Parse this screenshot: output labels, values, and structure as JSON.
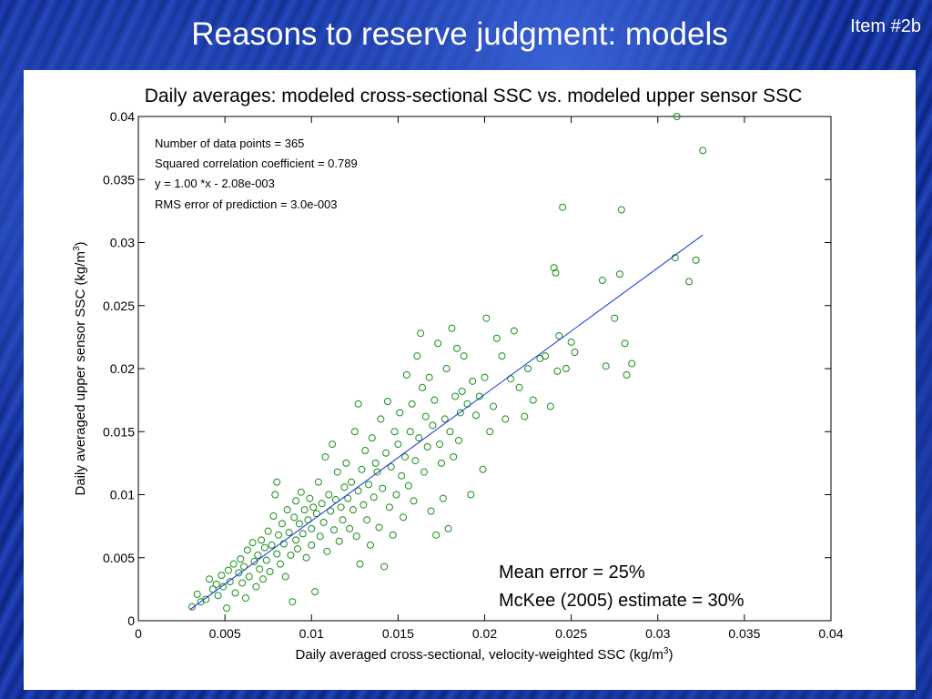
{
  "slide": {
    "title": "Reasons to reserve judgment: models",
    "item_label": "Item #2b"
  },
  "colors": {
    "points": "#1a8c1a",
    "fit_line": "#1030e0",
    "background": "#102c90"
  },
  "chart_data": {
    "type": "scatter",
    "title": "Daily averages: modeled cross-sectional SSC vs. modeled upper sensor SSC",
    "xlabel": "Daily averaged cross-sectional, velocity-weighted SSC (kg/m",
    "xlabel_sup": "3",
    "xlabel_end": ")",
    "ylabel": "Daily averaged upper sensor SSC (kg/m",
    "ylabel_sup": "3",
    "ylabel_end": ")",
    "xlim": [
      0,
      0.04
    ],
    "ylim": [
      0,
      0.04
    ],
    "xticks": [
      "0",
      "0.005",
      "0.01",
      "0.015",
      "0.02",
      "0.025",
      "0.03",
      "0.035",
      "0.04"
    ],
    "yticks": [
      "0",
      "0.005",
      "0.01",
      "0.015",
      "0.02",
      "0.025",
      "0.03",
      "0.035",
      "0.04"
    ],
    "grid": false,
    "stats": [
      "Number of data points = 365",
      "Squared correlation coefficient = 0.789",
      "y = 1.00 *x - 2.08e-003",
      "RMS error of prediction = 3.0e-003"
    ],
    "notes": [
      "Mean error = 25%",
      "McKee (2005) estimate = 30%"
    ],
    "fit_line": {
      "x": [
        0.003,
        0.0326
      ],
      "y": [
        0.0009,
        0.0306
      ]
    },
    "series": [
      {
        "marker": "open-circle",
        "points": [
          [
            0.0031,
            0.0011
          ],
          [
            0.0034,
            0.0021
          ],
          [
            0.0036,
            0.0015
          ],
          [
            0.0039,
            0.0017
          ],
          [
            0.0041,
            0.0033
          ],
          [
            0.0043,
            0.0025
          ],
          [
            0.0045,
            0.0029
          ],
          [
            0.0046,
            0.002
          ],
          [
            0.0048,
            0.0036
          ],
          [
            0.0049,
            0.0027
          ],
          [
            0.0051,
            0.001
          ],
          [
            0.0052,
            0.004
          ],
          [
            0.0053,
            0.0031
          ],
          [
            0.0055,
            0.0045
          ],
          [
            0.0056,
            0.0022
          ],
          [
            0.0058,
            0.0038
          ],
          [
            0.0059,
            0.0049
          ],
          [
            0.006,
            0.003
          ],
          [
            0.0061,
            0.0043
          ],
          [
            0.0062,
            0.0018
          ],
          [
            0.0063,
            0.0056
          ],
          [
            0.0064,
            0.0035
          ],
          [
            0.0066,
            0.0062
          ],
          [
            0.0067,
            0.0047
          ],
          [
            0.0068,
            0.0027
          ],
          [
            0.0069,
            0.0052
          ],
          [
            0.007,
            0.0041
          ],
          [
            0.0071,
            0.0064
          ],
          [
            0.0072,
            0.0033
          ],
          [
            0.0073,
            0.0058
          ],
          [
            0.0074,
            0.0048
          ],
          [
            0.0075,
            0.0071
          ],
          [
            0.0076,
            0.0039
          ],
          [
            0.0077,
            0.006
          ],
          [
            0.0078,
            0.0083
          ],
          [
            0.0079,
            0.01
          ],
          [
            0.008,
            0.011
          ],
          [
            0.008,
            0.0053
          ],
          [
            0.0081,
            0.0068
          ],
          [
            0.0082,
            0.0045
          ],
          [
            0.0083,
            0.0077
          ],
          [
            0.0084,
            0.0061
          ],
          [
            0.0085,
            0.0035
          ],
          [
            0.0086,
            0.0088
          ],
          [
            0.0087,
            0.007
          ],
          [
            0.0088,
            0.0052
          ],
          [
            0.0089,
            0.0015
          ],
          [
            0.009,
            0.0082
          ],
          [
            0.0091,
            0.0064
          ],
          [
            0.0091,
            0.0095
          ],
          [
            0.0092,
            0.0057
          ],
          [
            0.0093,
            0.0077
          ],
          [
            0.0094,
            0.0102
          ],
          [
            0.0095,
            0.0069
          ],
          [
            0.0096,
            0.0088
          ],
          [
            0.0097,
            0.005
          ],
          [
            0.0098,
            0.008
          ],
          [
            0.0099,
            0.0097
          ],
          [
            0.01,
            0.0073
          ],
          [
            0.01,
            0.006
          ],
          [
            0.0101,
            0.009
          ],
          [
            0.0102,
            0.0023
          ],
          [
            0.0103,
            0.0085
          ],
          [
            0.0104,
            0.011
          ],
          [
            0.0105,
            0.0067
          ],
          [
            0.0106,
            0.0093
          ],
          [
            0.0107,
            0.0078
          ],
          [
            0.0108,
            0.013
          ],
          [
            0.0109,
            0.0055
          ],
          [
            0.011,
            0.01
          ],
          [
            0.0111,
            0.0087
          ],
          [
            0.0112,
            0.014
          ],
          [
            0.0113,
            0.0072
          ],
          [
            0.0114,
            0.0096
          ],
          [
            0.0115,
            0.0118
          ],
          [
            0.0116,
            0.0063
          ],
          [
            0.0117,
            0.009
          ],
          [
            0.0118,
            0.008
          ],
          [
            0.0119,
            0.0106
          ],
          [
            0.012,
            0.0125
          ],
          [
            0.0121,
            0.0097
          ],
          [
            0.0122,
            0.0073
          ],
          [
            0.0123,
            0.011
          ],
          [
            0.0124,
            0.0088
          ],
          [
            0.0125,
            0.015
          ],
          [
            0.0126,
            0.0067
          ],
          [
            0.0127,
            0.0172
          ],
          [
            0.0127,
            0.0103
          ],
          [
            0.0128,
            0.0045
          ],
          [
            0.0129,
            0.012
          ],
          [
            0.013,
            0.0092
          ],
          [
            0.0131,
            0.0135
          ],
          [
            0.0132,
            0.008
          ],
          [
            0.0133,
            0.0108
          ],
          [
            0.0134,
            0.006
          ],
          [
            0.0135,
            0.0145
          ],
          [
            0.0136,
            0.0098
          ],
          [
            0.0137,
            0.0125
          ],
          [
            0.0138,
            0.0118
          ],
          [
            0.0139,
            0.0074
          ],
          [
            0.014,
            0.016
          ],
          [
            0.0141,
            0.0105
          ],
          [
            0.0142,
            0.0043
          ],
          [
            0.0143,
            0.0133
          ],
          [
            0.0144,
            0.0174
          ],
          [
            0.0145,
            0.009
          ],
          [
            0.0146,
            0.0122
          ],
          [
            0.0147,
            0.0068
          ],
          [
            0.0148,
            0.015
          ],
          [
            0.0149,
            0.01
          ],
          [
            0.015,
            0.014
          ],
          [
            0.0151,
            0.0165
          ],
          [
            0.0152,
            0.0115
          ],
          [
            0.0153,
            0.0082
          ],
          [
            0.0154,
            0.013
          ],
          [
            0.0155,
            0.0195
          ],
          [
            0.0156,
            0.0107
          ],
          [
            0.0157,
            0.015
          ],
          [
            0.0158,
            0.0172
          ],
          [
            0.0159,
            0.0095
          ],
          [
            0.016,
            0.0127
          ],
          [
            0.0161,
            0.021
          ],
          [
            0.0162,
            0.0145
          ],
          [
            0.0163,
            0.0228
          ],
          [
            0.0164,
            0.0185
          ],
          [
            0.0165,
            0.0118
          ],
          [
            0.0166,
            0.0162
          ],
          [
            0.0167,
            0.0138
          ],
          [
            0.0168,
            0.0193
          ],
          [
            0.0169,
            0.0087
          ],
          [
            0.017,
            0.0155
          ],
          [
            0.0171,
            0.0175
          ],
          [
            0.0172,
            0.0068
          ],
          [
            0.0173,
            0.022
          ],
          [
            0.0174,
            0.014
          ],
          [
            0.0175,
            0.0125
          ],
          [
            0.0176,
            0.0097
          ],
          [
            0.0177,
            0.016
          ],
          [
            0.0178,
            0.02
          ],
          [
            0.0179,
            0.0073
          ],
          [
            0.018,
            0.015
          ],
          [
            0.0181,
            0.0232
          ],
          [
            0.0182,
            0.013
          ],
          [
            0.0183,
            0.0178
          ],
          [
            0.0184,
            0.0216
          ],
          [
            0.0185,
            0.0143
          ],
          [
            0.0186,
            0.0165
          ],
          [
            0.0187,
            0.0182
          ],
          [
            0.0188,
            0.021
          ],
          [
            0.019,
            0.0172
          ],
          [
            0.0192,
            0.01
          ],
          [
            0.0193,
            0.019
          ],
          [
            0.0195,
            0.0163
          ],
          [
            0.0197,
            0.0178
          ],
          [
            0.0199,
            0.012
          ],
          [
            0.02,
            0.0193
          ],
          [
            0.0201,
            0.024
          ],
          [
            0.0203,
            0.015
          ],
          [
            0.0205,
            0.017
          ],
          [
            0.0207,
            0.0224
          ],
          [
            0.021,
            0.021
          ],
          [
            0.0212,
            0.016
          ],
          [
            0.0215,
            0.0192
          ],
          [
            0.0217,
            0.023
          ],
          [
            0.022,
            0.0185
          ],
          [
            0.0223,
            0.0162
          ],
          [
            0.0225,
            0.02
          ],
          [
            0.0228,
            0.0175
          ],
          [
            0.0232,
            0.0208
          ],
          [
            0.0235,
            0.021
          ],
          [
            0.0238,
            0.017
          ],
          [
            0.024,
            0.028
          ],
          [
            0.0241,
            0.0276
          ],
          [
            0.0242,
            0.0198
          ],
          [
            0.0243,
            0.0226
          ],
          [
            0.0245,
            0.0328
          ],
          [
            0.0247,
            0.02
          ],
          [
            0.025,
            0.0221
          ],
          [
            0.0252,
            0.0213
          ],
          [
            0.0268,
            0.027
          ],
          [
            0.027,
            0.0202
          ],
          [
            0.0275,
            0.024
          ],
          [
            0.0278,
            0.0275
          ],
          [
            0.0279,
            0.0326
          ],
          [
            0.0281,
            0.022
          ],
          [
            0.0282,
            0.0195
          ],
          [
            0.0285,
            0.0204
          ],
          [
            0.031,
            0.0288
          ],
          [
            0.0311,
            0.04
          ],
          [
            0.0318,
            0.0269
          ],
          [
            0.0322,
            0.0286
          ],
          [
            0.0326,
            0.0373
          ]
        ]
      }
    ]
  }
}
